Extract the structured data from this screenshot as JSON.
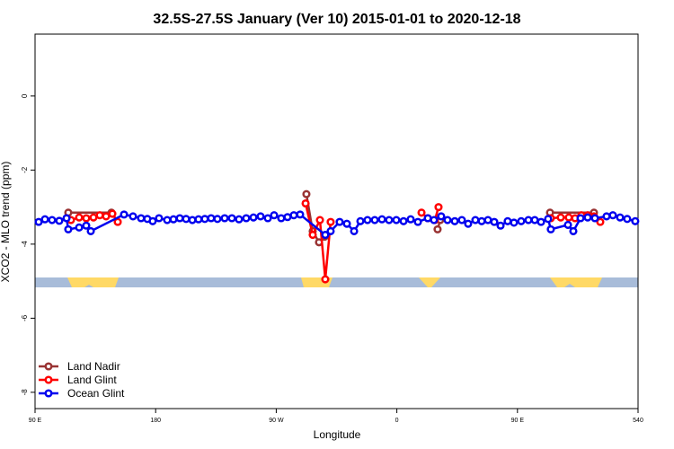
{
  "chart_data": {
    "type": "line",
    "title": "32.5S-27.5S January (Ver 10)   2015-01-01 to 2020-12-18",
    "xlabel": "Longitude",
    "ylabel": "XCO2 - MLO trend (ppm)",
    "xlim": [
      90,
      540
    ],
    "ylim": [
      -8.44,
      1.67
    ],
    "xticks": [
      {
        "value": 90,
        "label": "90 E"
      },
      180,
      {
        "value": 270,
        "label": "90 W"
      },
      {
        "value": 360,
        "label": "0"
      },
      {
        "value": 450,
        "label": "90 E"
      },
      540
    ],
    "yticks": [
      0,
      -2,
      -4,
      -6,
      -8
    ],
    "legend": "bottom-left",
    "series": [
      {
        "name": "Land Nadir",
        "color": "#993333",
        "x": [
          114.8,
          147.0,
          null,
          292.5,
          297.2,
          301.9,
          306.0,
          null,
          390.4,
          392.4,
          null,
          474.3,
          507.1
        ],
        "values": [
          -3.15,
          -3.15,
          null,
          -2.65,
          -3.65,
          -3.95,
          -3.8,
          null,
          -3.6,
          -3.35,
          null,
          -3.15,
          -3.15
        ]
      },
      {
        "name": "Land Glint",
        "color": "#ff0000",
        "x": [
          116.8,
          122.9,
          128.2,
          133.6,
          138.3,
          143.0,
          147.7,
          151.7,
          null,
          291.9,
          297.2,
          302.6,
          306.6,
          310.6,
          null,
          378.4,
          383.1,
          388.4,
          391.1,
          null,
          474.9,
          482.3,
          488.3,
          493.0,
          497.7,
          502.4,
          507.1,
          511.8
        ],
        "values": [
          -3.35,
          -3.28,
          -3.3,
          -3.28,
          -3.22,
          -3.25,
          -3.18,
          -3.4,
          null,
          -2.9,
          -3.75,
          -3.35,
          -4.95,
          -3.4,
          null,
          -3.15,
          -3.3,
          -3.35,
          -3.0,
          null,
          -3.3,
          -3.28,
          -3.28,
          -3.3,
          -3.22,
          -3.22,
          -3.25,
          -3.4
        ]
      },
      {
        "name": "Ocean Glint",
        "color": "#0000ee",
        "x": [
          92.7,
          97.4,
          102.7,
          108.1,
          113.5,
          114.8,
          122.9,
          128.2,
          131.6,
          156.4,
          163.1,
          169.1,
          173.8,
          177.8,
          182.5,
          188.6,
          193.3,
          198.0,
          202.7,
          207.4,
          212.0,
          216.7,
          221.4,
          226.1,
          231.5,
          236.9,
          242.2,
          247.6,
          253.0,
          258.3,
          263.7,
          268.4,
          273.7,
          278.4,
          283.1,
          287.8,
          306.6,
          310.6,
          317.3,
          322.7,
          328.1,
          332.8,
          338.1,
          343.5,
          348.9,
          354.2,
          359.6,
          365.0,
          370.3,
          375.7,
          383.1,
          387.7,
          393.1,
          397.8,
          403.2,
          408.5,
          413.2,
          418.6,
          423.3,
          428.0,
          432.7,
          437.4,
          442.7,
          447.4,
          452.8,
          458.2,
          462.9,
          467.6,
          472.9,
          474.9,
          487.7,
          491.7,
          497.1,
          502.4,
          507.8,
          516.5,
          521.2,
          526.6,
          531.9,
          537.9
        ],
        "values": [
          -3.4,
          -3.33,
          -3.35,
          -3.37,
          -3.3,
          -3.6,
          -3.55,
          -3.5,
          -3.65,
          -3.2,
          -3.25,
          -3.3,
          -3.32,
          -3.38,
          -3.3,
          -3.35,
          -3.33,
          -3.3,
          -3.32,
          -3.35,
          -3.33,
          -3.32,
          -3.3,
          -3.32,
          -3.3,
          -3.3,
          -3.33,
          -3.3,
          -3.28,
          -3.25,
          -3.3,
          -3.22,
          -3.3,
          -3.27,
          -3.22,
          -3.2,
          -3.75,
          -3.65,
          -3.4,
          -3.45,
          -3.65,
          -3.38,
          -3.35,
          -3.35,
          -3.33,
          -3.35,
          -3.35,
          -3.38,
          -3.33,
          -3.4,
          -3.3,
          -3.35,
          -3.25,
          -3.35,
          -3.38,
          -3.35,
          -3.45,
          -3.35,
          -3.38,
          -3.35,
          -3.4,
          -3.5,
          -3.38,
          -3.42,
          -3.38,
          -3.35,
          -3.35,
          -3.4,
          -3.32,
          -3.6,
          -3.48,
          -3.65,
          -3.3,
          -3.28,
          -3.3,
          -3.25,
          -3.22,
          -3.28,
          -3.32,
          -3.38
        ]
      }
    ]
  }
}
